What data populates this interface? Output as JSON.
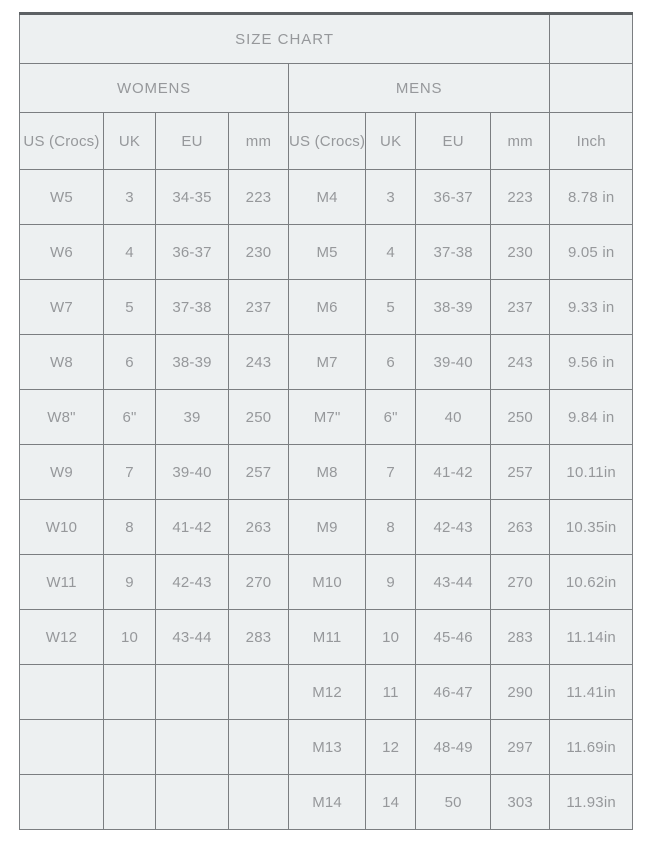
{
  "chart_data": {
    "type": "table",
    "title": "SIZE CHART",
    "sections": [
      {
        "label": "WOMENS",
        "colspan": 4
      },
      {
        "label": "MENS",
        "colspan": 4
      }
    ],
    "columns": [
      "US (Crocs)",
      "UK",
      "EU",
      "mm",
      "US (Crocs)",
      "UK",
      "EU",
      "mm",
      "Inch"
    ],
    "rows": [
      [
        "W5",
        "3",
        "34-35",
        "223",
        "M4",
        "3",
        "36-37",
        "223",
        "8.78 in"
      ],
      [
        "W6",
        "4",
        "36-37",
        "230",
        "M5",
        "4",
        "37-38",
        "230",
        "9.05 in"
      ],
      [
        "W7",
        "5",
        "37-38",
        "237",
        "M6",
        "5",
        "38-39",
        "237",
        "9.33 in"
      ],
      [
        "W8",
        "6",
        "38-39",
        "243",
        "M7",
        "6",
        "39-40",
        "243",
        "9.56 in"
      ],
      [
        "W8\"",
        "6\"",
        "39",
        "250",
        "M7\"",
        "6\"",
        "40",
        "250",
        "9.84 in"
      ],
      [
        "W9",
        "7",
        "39-40",
        "257",
        "M8",
        "7",
        "41-42",
        "257",
        "10.11in"
      ],
      [
        "W10",
        "8",
        "41-42",
        "263",
        "M9",
        "8",
        "42-43",
        "263",
        "10.35in"
      ],
      [
        "W11",
        "9",
        "42-43",
        "270",
        "M10",
        "9",
        "43-44",
        "270",
        "10.62in"
      ],
      [
        "W12",
        "10",
        "43-44",
        "283",
        "M11",
        "10",
        "45-46",
        "283",
        "11.14in"
      ],
      [
        "",
        "",
        "",
        "",
        "M12",
        "11",
        "46-47",
        "290",
        "11.41in"
      ],
      [
        "",
        "",
        "",
        "",
        "M13",
        "12",
        "48-49",
        "297",
        "11.69in"
      ],
      [
        "",
        "",
        "",
        "",
        "M14",
        "14",
        "50",
        "303",
        "11.93in"
      ]
    ]
  },
  "colors": {
    "cell_background": "#edf0f1",
    "border_thin": "#7b7e81",
    "border_thick": "#5d6164",
    "text_dark": "#55585b",
    "text_light": "#96989b"
  }
}
